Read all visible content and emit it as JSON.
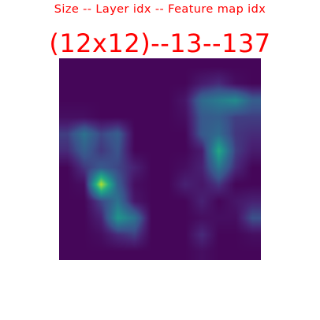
{
  "header": {
    "legend_text": "Size -- Layer idx -- Feature map idx",
    "title_text": "(12x12)--13--137"
  },
  "chart_data": {
    "type": "heatmap",
    "colormap": "viridis",
    "value_range": [
      0,
      1
    ],
    "interpolation": "bilinear",
    "grid": false,
    "legend": "none",
    "rows": 12,
    "cols": 12,
    "values": [
      [
        0.02,
        0.02,
        0.02,
        0.02,
        0.02,
        0.02,
        0.02,
        0.02,
        0.02,
        0.02,
        0.02,
        0.02
      ],
      [
        0.02,
        0.02,
        0.02,
        0.02,
        0.02,
        0.02,
        0.02,
        0.02,
        0.1,
        0.15,
        0.05,
        0.02
      ],
      [
        0.02,
        0.02,
        0.02,
        0.02,
        0.02,
        0.02,
        0.02,
        0.08,
        0.35,
        0.42,
        0.48,
        0.3
      ],
      [
        0.05,
        0.05,
        0.02,
        0.02,
        0.02,
        0.02,
        0.02,
        0.05,
        0.28,
        0.3,
        0.2,
        0.2
      ],
      [
        0.2,
        0.38,
        0.22,
        0.3,
        0.02,
        0.02,
        0.02,
        0.02,
        0.28,
        0.35,
        0.18,
        0.15
      ],
      [
        0.15,
        0.3,
        0.18,
        0.26,
        0.02,
        0.02,
        0.02,
        0.02,
        0.1,
        0.6,
        0.2,
        0.1
      ],
      [
        0.02,
        0.18,
        0.28,
        0.22,
        0.12,
        0.02,
        0.02,
        0.05,
        0.12,
        0.4,
        0.15,
        0.02
      ],
      [
        0.02,
        0.05,
        0.9,
        0.3,
        0.05,
        0.02,
        0.02,
        0.12,
        0.08,
        0.18,
        0.02,
        0.02
      ],
      [
        0.02,
        0.02,
        0.22,
        0.38,
        0.08,
        0.02,
        0.02,
        0.02,
        0.12,
        0.02,
        0.08,
        0.12
      ],
      [
        0.02,
        0.02,
        0.12,
        0.52,
        0.38,
        0.02,
        0.02,
        0.02,
        0.05,
        0.05,
        0.05,
        0.25
      ],
      [
        0.02,
        0.02,
        0.05,
        0.15,
        0.2,
        0.02,
        0.02,
        0.02,
        0.15,
        0.02,
        0.02,
        0.05
      ],
      [
        0.02,
        0.02,
        0.02,
        0.02,
        0.02,
        0.02,
        0.02,
        0.02,
        0.05,
        0.02,
        0.02,
        0.02
      ]
    ]
  }
}
